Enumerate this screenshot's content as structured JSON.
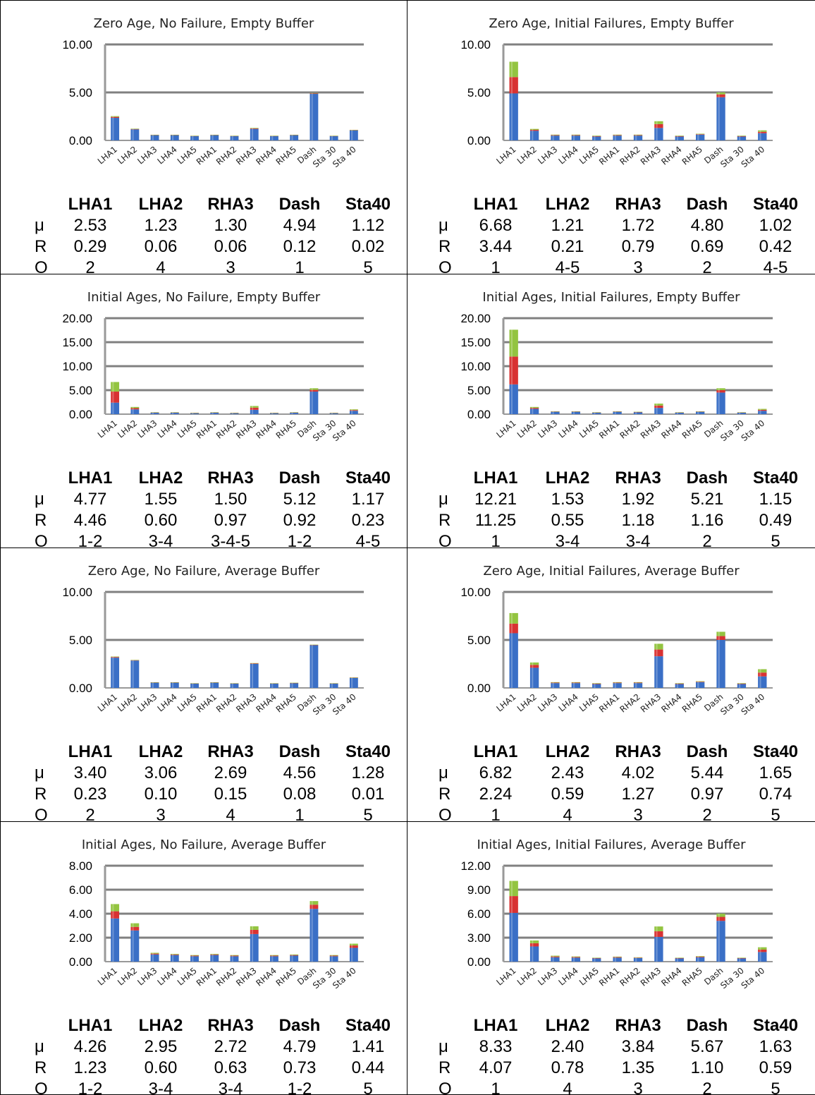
{
  "row_labels": [
    "μ",
    "R",
    "O"
  ],
  "stat_headers": [
    "LHA1",
    "LHA2",
    "RHA3",
    "Dash",
    "Sta40"
  ],
  "series_colors": [
    "#3a6fc6",
    "#d83232",
    "#93c440"
  ],
  "chart_data": [
    {
      "type": "bar",
      "stacked": true,
      "title": "Zero Age, No Failure, Empty Buffer",
      "categories": [
        "LHA1",
        "LHA2",
        "LHA3",
        "LHA4",
        "LHA5",
        "RHA1",
        "RHA2",
        "RHA3",
        "RHA4",
        "RHA5",
        "Dash",
        "Sta 30",
        "Sta 40"
      ],
      "ylim": [
        0,
        10
      ],
      "yticks": [
        "0.00",
        "5.00",
        "10.00"
      ],
      "series": [
        {
          "values": [
            2.35,
            1.15,
            0.55,
            0.55,
            0.45,
            0.55,
            0.45,
            1.2,
            0.45,
            0.55,
            4.85,
            0.45,
            1.05
          ]
        },
        {
          "values": [
            0.1,
            0.04,
            0.02,
            0.02,
            0.02,
            0.02,
            0.02,
            0.05,
            0.02,
            0.02,
            0.06,
            0.02,
            0.03
          ]
        },
        {
          "values": [
            0.08,
            0.04,
            0.02,
            0.02,
            0.02,
            0.02,
            0.02,
            0.05,
            0.02,
            0.02,
            0.03,
            0.02,
            0.02
          ]
        }
      ],
      "stats": {
        "mu": [
          "2.53",
          "1.23",
          "1.30",
          "4.94",
          "1.12"
        ],
        "R": [
          "0.29",
          "0.06",
          "0.06",
          "0.12",
          "0.02"
        ],
        "O": [
          "2",
          "4",
          "3",
          "1",
          "5"
        ]
      }
    },
    {
      "type": "bar",
      "stacked": true,
      "title": "Zero Age, Initial Failures, Empty Buffer",
      "categories": [
        "LHA1",
        "LHA2",
        "LHA3",
        "LHA4",
        "LHA5",
        "RHA1",
        "RHA2",
        "RHA3",
        "RHA4",
        "RHA5",
        "Dash",
        "Sta 30",
        "Sta 40"
      ],
      "ylim": [
        0,
        10
      ],
      "yticks": [
        "0.00",
        "5.00",
        "10.00"
      ],
      "series": [
        {
          "values": [
            4.9,
            1.0,
            0.5,
            0.5,
            0.4,
            0.5,
            0.5,
            1.3,
            0.4,
            0.6,
            4.5,
            0.4,
            0.75
          ]
        },
        {
          "values": [
            1.7,
            0.1,
            0.05,
            0.05,
            0.05,
            0.05,
            0.05,
            0.4,
            0.05,
            0.05,
            0.3,
            0.05,
            0.15
          ]
        },
        {
          "values": [
            1.6,
            0.1,
            0.05,
            0.05,
            0.05,
            0.05,
            0.05,
            0.3,
            0.05,
            0.05,
            0.2,
            0.05,
            0.15
          ]
        }
      ],
      "stats": {
        "mu": [
          "6.68",
          "1.21",
          "1.72",
          "4.80",
          "1.02"
        ],
        "R": [
          "3.44",
          "0.21",
          "0.79",
          "0.69",
          "0.42"
        ],
        "O": [
          "1",
          "4-5",
          "3",
          "2",
          "4-5"
        ]
      }
    },
    {
      "type": "bar",
      "stacked": true,
      "title": "Initial Ages, No Failure, Empty Buffer",
      "categories": [
        "LHA1",
        "LHA2",
        "LHA3",
        "LHA4",
        "LHA5",
        "RHA1",
        "RHA2",
        "RHA3",
        "RHA4",
        "RHA5",
        "Dash",
        "Sta 30",
        "Sta 40"
      ],
      "ylim": [
        0,
        20
      ],
      "yticks": [
        "0.00",
        "5.00",
        "10.00",
        "15.00",
        "20.00"
      ],
      "series": [
        {
          "values": [
            2.4,
            1.0,
            0.3,
            0.3,
            0.2,
            0.3,
            0.2,
            0.9,
            0.2,
            0.3,
            4.7,
            0.2,
            0.7
          ]
        },
        {
          "values": [
            2.3,
            0.25,
            0.05,
            0.05,
            0.05,
            0.05,
            0.05,
            0.45,
            0.05,
            0.05,
            0.35,
            0.05,
            0.15
          ]
        },
        {
          "values": [
            2.0,
            0.25,
            0.05,
            0.05,
            0.05,
            0.05,
            0.05,
            0.35,
            0.05,
            0.05,
            0.35,
            0.05,
            0.15
          ]
        }
      ],
      "stats": {
        "mu": [
          "4.77",
          "1.55",
          "1.50",
          "5.12",
          "1.17"
        ],
        "R": [
          "4.46",
          "0.60",
          "0.97",
          "0.92",
          "0.23"
        ],
        "O": [
          "1-2",
          "3-4",
          "3-4-5",
          "1-2",
          "4-5"
        ]
      }
    },
    {
      "type": "bar",
      "stacked": true,
      "title": "Initial Ages, Initial Failures, Empty Buffer",
      "categories": [
        "LHA1",
        "LHA2",
        "LHA3",
        "LHA4",
        "LHA5",
        "RHA1",
        "RHA2",
        "RHA3",
        "RHA4",
        "RHA5",
        "Dash",
        "Sta 30",
        "Sta 40"
      ],
      "ylim": [
        0,
        20
      ],
      "yticks": [
        "0.00",
        "5.00",
        "10.00",
        "15.00",
        "20.00"
      ],
      "series": [
        {
          "values": [
            6.2,
            1.1,
            0.5,
            0.5,
            0.3,
            0.5,
            0.4,
            1.3,
            0.3,
            0.5,
            4.5,
            0.3,
            0.7
          ]
        },
        {
          "values": [
            5.8,
            0.2,
            0.05,
            0.05,
            0.05,
            0.05,
            0.05,
            0.5,
            0.05,
            0.05,
            0.5,
            0.05,
            0.2
          ]
        },
        {
          "values": [
            5.6,
            0.2,
            0.05,
            0.05,
            0.05,
            0.05,
            0.05,
            0.4,
            0.05,
            0.05,
            0.4,
            0.05,
            0.2
          ]
        }
      ],
      "stats": {
        "mu": [
          "12.21",
          "1.53",
          "1.92",
          "5.21",
          "1.15"
        ],
        "R": [
          "11.25",
          "0.55",
          "1.18",
          "1.16",
          "0.49"
        ],
        "O": [
          "1",
          "3-4",
          "3-4",
          "2",
          "5"
        ]
      }
    },
    {
      "type": "bar",
      "stacked": true,
      "title": "Zero Age, No Failure, Average Buffer",
      "categories": [
        "LHA1",
        "LHA2",
        "LHA3",
        "LHA4",
        "LHA5",
        "RHA1",
        "RHA2",
        "RHA3",
        "RHA4",
        "RHA5",
        "Dash",
        "Sta 30",
        "Sta 40"
      ],
      "ylim": [
        0,
        10
      ],
      "yticks": [
        "0.00",
        "5.00",
        "10.00"
      ],
      "series": [
        {
          "values": [
            3.15,
            2.85,
            0.55,
            0.55,
            0.45,
            0.55,
            0.45,
            2.5,
            0.45,
            0.5,
            4.45,
            0.45,
            1.05
          ]
        },
        {
          "values": [
            0.07,
            0.04,
            0.02,
            0.02,
            0.02,
            0.02,
            0.02,
            0.05,
            0.02,
            0.02,
            0.03,
            0.02,
            0.02
          ]
        },
        {
          "values": [
            0.05,
            0.03,
            0.02,
            0.02,
            0.02,
            0.02,
            0.02,
            0.04,
            0.02,
            0.02,
            0.03,
            0.02,
            0.02
          ]
        }
      ],
      "stats": {
        "mu": [
          "3.40",
          "3.06",
          "2.69",
          "4.56",
          "1.28"
        ],
        "R": [
          "0.23",
          "0.10",
          "0.15",
          "0.08",
          "0.01"
        ],
        "O": [
          "2",
          "3",
          "4",
          "1",
          "5"
        ]
      }
    },
    {
      "type": "bar",
      "stacked": true,
      "title": "Zero Age, Initial Failures, Average Buffer",
      "categories": [
        "LHA1",
        "LHA2",
        "LHA3",
        "LHA4",
        "LHA5",
        "RHA1",
        "RHA2",
        "RHA3",
        "RHA4",
        "RHA5",
        "Dash",
        "Sta 30",
        "Sta 40"
      ],
      "ylim": [
        0,
        10
      ],
      "yticks": [
        "0.00",
        "5.00",
        "10.00"
      ],
      "series": [
        {
          "values": [
            5.7,
            2.1,
            0.5,
            0.5,
            0.4,
            0.5,
            0.5,
            3.3,
            0.4,
            0.6,
            5.0,
            0.4,
            1.2
          ]
        },
        {
          "values": [
            1.0,
            0.3,
            0.05,
            0.05,
            0.05,
            0.05,
            0.05,
            0.7,
            0.05,
            0.05,
            0.4,
            0.05,
            0.4
          ]
        },
        {
          "values": [
            1.1,
            0.25,
            0.05,
            0.05,
            0.05,
            0.05,
            0.05,
            0.6,
            0.05,
            0.05,
            0.45,
            0.05,
            0.35
          ]
        }
      ],
      "stats": {
        "mu": [
          "6.82",
          "2.43",
          "4.02",
          "5.44",
          "1.65"
        ],
        "R": [
          "2.24",
          "0.59",
          "1.27",
          "0.97",
          "0.74"
        ],
        "O": [
          "1",
          "4",
          "3",
          "2",
          "5"
        ]
      }
    },
    {
      "type": "bar",
      "stacked": true,
      "title": "Initial Ages, No Failure, Average Buffer",
      "categories": [
        "LHA1",
        "LHA2",
        "LHA3",
        "LHA4",
        "LHA5",
        "RHA1",
        "RHA2",
        "RHA3",
        "RHA4",
        "RHA5",
        "Dash",
        "Sta 30",
        "Sta 40"
      ],
      "ylim": [
        0,
        8
      ],
      "yticks": [
        "0.00",
        "2.00",
        "4.00",
        "6.00",
        "8.00"
      ],
      "series": [
        {
          "values": [
            3.6,
            2.6,
            0.6,
            0.55,
            0.45,
            0.55,
            0.45,
            2.3,
            0.45,
            0.5,
            4.4,
            0.45,
            1.15
          ]
        },
        {
          "values": [
            0.6,
            0.3,
            0.07,
            0.05,
            0.05,
            0.05,
            0.05,
            0.35,
            0.05,
            0.05,
            0.35,
            0.05,
            0.2
          ]
        },
        {
          "values": [
            0.6,
            0.3,
            0.07,
            0.05,
            0.05,
            0.05,
            0.05,
            0.3,
            0.05,
            0.05,
            0.3,
            0.05,
            0.15
          ]
        }
      ],
      "stats": {
        "mu": [
          "4.26",
          "2.95",
          "2.72",
          "4.79",
          "1.41"
        ],
        "R": [
          "1.23",
          "0.60",
          "0.63",
          "0.73",
          "0.44"
        ],
        "O": [
          "1-2",
          "3-4",
          "3-4",
          "1-2",
          "5"
        ]
      }
    },
    {
      "type": "bar",
      "stacked": true,
      "title": "Initial Ages, Initial Failures, Average Buffer",
      "categories": [
        "LHA1",
        "LHA2",
        "LHA3",
        "LHA4",
        "LHA5",
        "RHA1",
        "RHA2",
        "RHA3",
        "RHA4",
        "RHA5",
        "Dash",
        "Sta 30",
        "Sta 40"
      ],
      "ylim": [
        0,
        12
      ],
      "yticks": [
        "0.00",
        "3.00",
        "6.00",
        "9.00",
        "12.00"
      ],
      "series": [
        {
          "values": [
            6.1,
            1.9,
            0.55,
            0.5,
            0.4,
            0.5,
            0.45,
            3.1,
            0.4,
            0.55,
            5.1,
            0.4,
            1.2
          ]
        },
        {
          "values": [
            2.1,
            0.4,
            0.1,
            0.08,
            0.05,
            0.07,
            0.05,
            0.7,
            0.05,
            0.08,
            0.5,
            0.05,
            0.3
          ]
        },
        {
          "values": [
            1.9,
            0.35,
            0.1,
            0.07,
            0.05,
            0.06,
            0.05,
            0.6,
            0.05,
            0.07,
            0.4,
            0.05,
            0.3
          ]
        }
      ],
      "stats": {
        "mu": [
          "8.33",
          "2.40",
          "3.84",
          "5.67",
          "1.63"
        ],
        "R": [
          "4.07",
          "0.78",
          "1.35",
          "1.10",
          "0.59"
        ],
        "O": [
          "1",
          "4",
          "3",
          "2",
          "5"
        ]
      }
    }
  ]
}
